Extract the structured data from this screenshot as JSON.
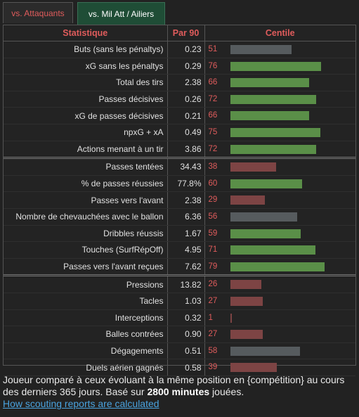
{
  "tabs": {
    "attaquants": "vs. Attaquants",
    "ailiers": "vs. Mil Att / Ailiers"
  },
  "columns": {
    "stat": "Statistique",
    "per90": "Par 90",
    "centile": "Centile"
  },
  "colors": {
    "green": "#5a8f48",
    "red": "#7d4444",
    "gray": "#565b5e",
    "header": "#e05c5c"
  },
  "groups": [
    [
      {
        "label": "Buts (sans les pénaltys)",
        "value": "0.23",
        "pct": 51,
        "color": "gray"
      },
      {
        "label": "xG sans les pénaltys",
        "value": "0.29",
        "pct": 76,
        "color": "green"
      },
      {
        "label": "Total des tirs",
        "value": "2.38",
        "pct": 66,
        "color": "green"
      },
      {
        "label": "Passes décisives",
        "value": "0.26",
        "pct": 72,
        "color": "green"
      },
      {
        "label": "xG de passes décisives",
        "value": "0.21",
        "pct": 66,
        "color": "green"
      },
      {
        "label": "npxG + xA",
        "value": "0.49",
        "pct": 75,
        "color": "green"
      },
      {
        "label": "Actions menant à un tir",
        "value": "3.86",
        "pct": 72,
        "color": "green"
      }
    ],
    [
      {
        "label": "Passes tentées",
        "value": "34.43",
        "pct": 38,
        "color": "red"
      },
      {
        "label": "% de passes réussies",
        "value": "77.8%",
        "pct": 60,
        "color": "green"
      },
      {
        "label": "Passes vers l'avant",
        "value": "2.38",
        "pct": 29,
        "color": "red"
      },
      {
        "label": "Nombre de chevauchées avec le ballon",
        "value": "6.36",
        "pct": 56,
        "color": "gray"
      },
      {
        "label": "Dribbles réussis",
        "value": "1.67",
        "pct": 59,
        "color": "green"
      },
      {
        "label": "Touches (SurfRépOff)",
        "value": "4.95",
        "pct": 71,
        "color": "green"
      },
      {
        "label": "Passes vers l'avant reçues",
        "value": "7.62",
        "pct": 79,
        "color": "green"
      }
    ],
    [
      {
        "label": "Pressions",
        "value": "13.82",
        "pct": 26,
        "color": "red"
      },
      {
        "label": "Tacles",
        "value": "1.03",
        "pct": 27,
        "color": "red"
      },
      {
        "label": "Interceptions",
        "value": "0.32",
        "pct": 1,
        "color": "red"
      },
      {
        "label": "Balles contrées",
        "value": "0.90",
        "pct": 27,
        "color": "red"
      },
      {
        "label": "Dégagements",
        "value": "0.51",
        "pct": 58,
        "color": "gray"
      },
      {
        "label": "Duels aérien gagnés",
        "value": "0.58",
        "pct": 39,
        "color": "red"
      }
    ]
  ],
  "footer": {
    "text_before": "Joueur comparé à ceux évoluant à la même position en {compétition} au cours des derniers 365 jours. Basé sur ",
    "minutes": "2800 minutes",
    "text_after": " jouées.",
    "link": "How scouting reports are calculated"
  }
}
